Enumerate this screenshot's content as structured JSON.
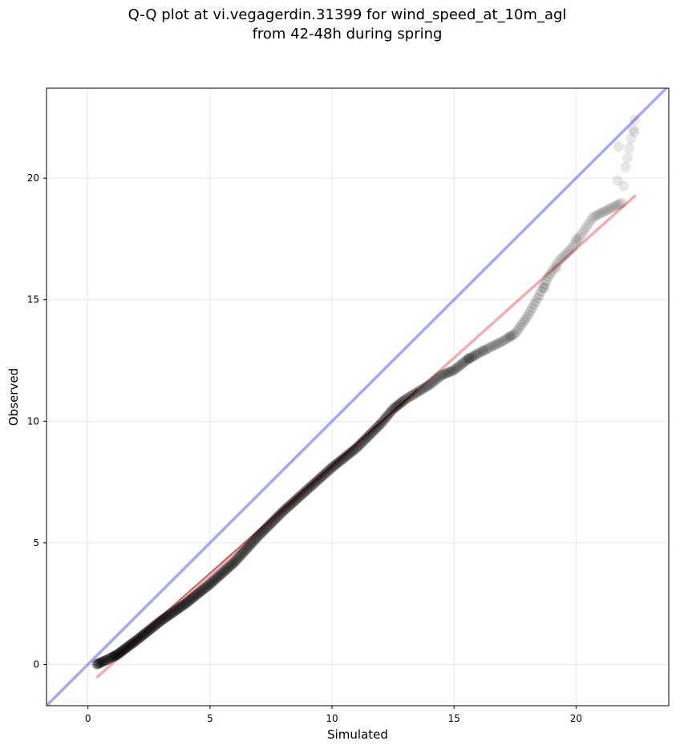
{
  "chart_data": {
    "type": "scatter",
    "title_line1": "Q-Q plot at vi.vegagerdin.31399 for wind_speed_at_10m_agl",
    "title_line2": "from 42-48h during spring",
    "xlabel": "Simulated",
    "ylabel": "Observed",
    "xlim": [
      -1.7,
      23.8
    ],
    "ylim": [
      -1.7,
      23.7
    ],
    "xticks": [
      0,
      5,
      10,
      15,
      20
    ],
    "yticks": [
      0,
      5,
      10,
      15,
      20
    ],
    "grid": true,
    "colors": {
      "points": "#000000",
      "identity_line": "#6b6ef0",
      "fit_line": "#f08080",
      "fit_line_inner": "#8b0000",
      "grid": "#e6e6e6"
    },
    "identity_line": {
      "x": [
        -1.7,
        23.8
      ],
      "y": [
        -1.7,
        23.8
      ]
    },
    "fit_line": {
      "x": [
        0.35,
        22.45
      ],
      "y": [
        -0.55,
        19.3
      ]
    },
    "anchors": [
      [
        0.35,
        0.0
      ],
      [
        0.8,
        0.2
      ],
      [
        1.2,
        0.4
      ],
      [
        2.0,
        1.0
      ],
      [
        3.0,
        1.8
      ],
      [
        4.0,
        2.5
      ],
      [
        5.0,
        3.3
      ],
      [
        6.0,
        4.2
      ],
      [
        7.0,
        5.3
      ],
      [
        8.0,
        6.3
      ],
      [
        9.0,
        7.2
      ],
      [
        10.0,
        8.1
      ],
      [
        11.0,
        8.9
      ],
      [
        12.0,
        9.9
      ],
      [
        12.5,
        10.5
      ],
      [
        13.0,
        10.9
      ],
      [
        13.5,
        11.2
      ],
      [
        14.0,
        11.5
      ],
      [
        14.5,
        11.9
      ],
      [
        15.0,
        12.1
      ],
      [
        15.5,
        12.5
      ],
      [
        16.0,
        12.8
      ],
      [
        17.0,
        13.3
      ],
      [
        17.5,
        13.6
      ],
      [
        18.0,
        14.3
      ],
      [
        18.5,
        15.2
      ],
      [
        18.9,
        16.0
      ],
      [
        19.3,
        16.6
      ],
      [
        19.8,
        17.1
      ],
      [
        20.3,
        17.8
      ],
      [
        20.7,
        18.4
      ],
      [
        21.3,
        18.7
      ],
      [
        21.9,
        19.0
      ],
      [
        22.0,
        20.3
      ],
      [
        22.45,
        22.6
      ]
    ],
    "outliers": [
      [
        21.75,
        21.3
      ],
      [
        21.7,
        19.9
      ],
      [
        22.4,
        21.9
      ],
      [
        20.0,
        17.5
      ],
      [
        19.2,
        16.3
      ],
      [
        18.7,
        15.5
      ],
      [
        17.3,
        13.5
      ],
      [
        16.2,
        12.9
      ],
      [
        15.6,
        12.6
      ]
    ],
    "n_points": 360
  }
}
